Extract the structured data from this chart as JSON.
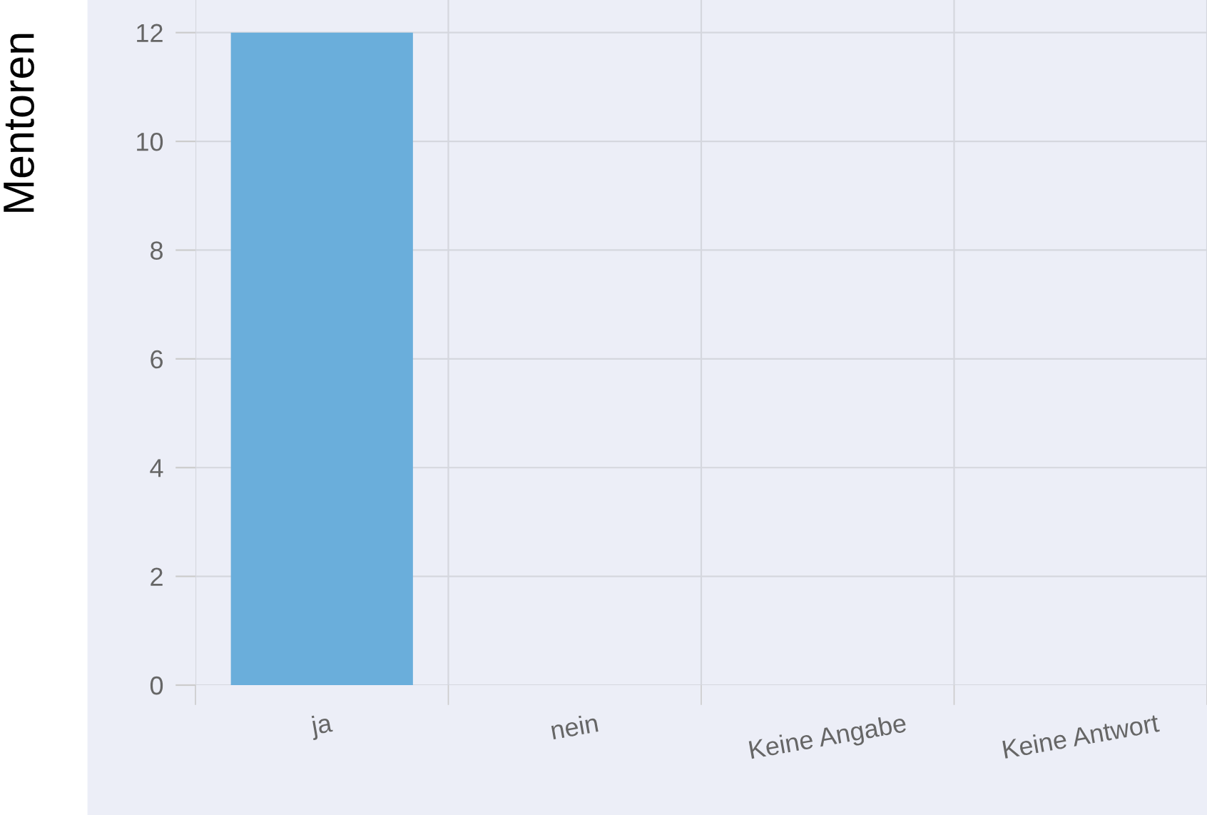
{
  "chart_data": {
    "type": "bar",
    "ylabel": "Mentoren",
    "categories": [
      "ja",
      "nein",
      "Keine Angabe",
      "Keine Antwort"
    ],
    "values": [
      12,
      0,
      0,
      0
    ],
    "color": "#6aaedb",
    "ylim": [
      0,
      12.6
    ],
    "yticks": [
      0,
      2,
      4,
      6,
      8,
      10,
      12
    ],
    "grid": true
  }
}
